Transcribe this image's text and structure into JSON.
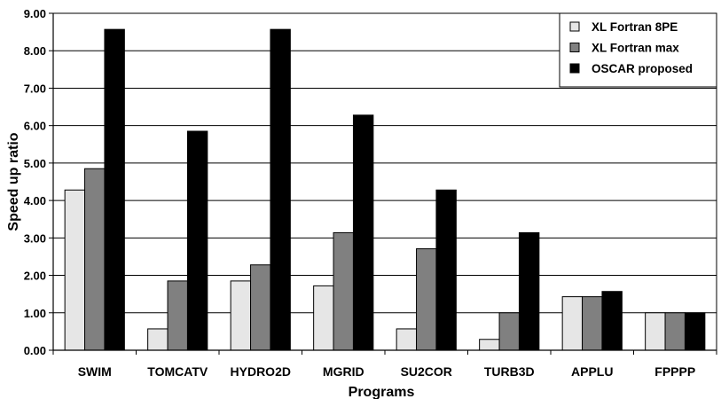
{
  "chart_data": {
    "type": "bar",
    "title": "",
    "xlabel": "Programs",
    "ylabel": "Speed up ratio",
    "ylim": [
      0,
      9
    ],
    "yticks": [
      "0.00",
      "1.00",
      "2.00",
      "3.00",
      "4.00",
      "5.00",
      "6.00",
      "7.00",
      "8.00",
      "9.00"
    ],
    "categories": [
      "SWIM",
      "TOMCATV",
      "HYDRO2D",
      "MGRID",
      "SU2COR",
      "TURB3D",
      "APPLU",
      "FPPPP"
    ],
    "series": [
      {
        "name": "XL Fortran 8PE",
        "color": "#e6e6e6",
        "values": [
          4.28,
          0.57,
          1.85,
          1.72,
          0.57,
          0.29,
          1.43,
          1.0
        ]
      },
      {
        "name": "XL Fortran max",
        "color": "#808080",
        "values": [
          4.85,
          1.85,
          2.28,
          3.14,
          2.71,
          1.0,
          1.43,
          1.0
        ]
      },
      {
        "name": "OSCAR proposed",
        "color": "#000000",
        "values": [
          8.57,
          5.85,
          8.57,
          6.28,
          4.28,
          3.14,
          1.57,
          1.0
        ]
      }
    ],
    "grid": true,
    "legend_position": "top-right"
  }
}
